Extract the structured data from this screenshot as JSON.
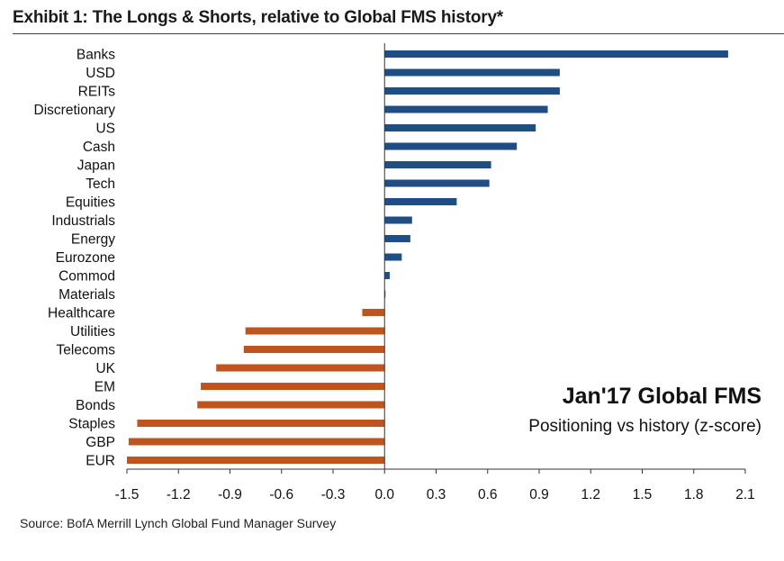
{
  "header": {
    "title": "Exhibit 1: The Longs & Shorts, relative to Global FMS history*"
  },
  "footer": {
    "source": "Source: BofA Merrill Lynch Global Fund Manager Survey"
  },
  "colors": {
    "positive": "#1f4e85",
    "negative": "#c0541f",
    "title_rule": "#1f4f82"
  },
  "chart_data": {
    "type": "bar",
    "orientation": "horizontal",
    "title": "Exhibit 1: The Longs & Shorts, relative to Global FMS history*",
    "annotation_title": "Jan'17 Global FMS",
    "annotation_subtitle": "Positioning vs history (z-score)",
    "xlabel": "",
    "ylabel": "",
    "xlim": [
      -1.5,
      2.1
    ],
    "x_ticks": [
      "-1.5",
      "-1.2",
      "-0.9",
      "-0.6",
      "-0.3",
      "0.0",
      "0.3",
      "0.6",
      "0.9",
      "1.2",
      "1.5",
      "1.8",
      "2.1"
    ],
    "grid": false,
    "categories": [
      "Banks",
      "USD",
      "REITs",
      "Discretionary",
      "US",
      "Cash",
      "Japan",
      "Tech",
      "Equities",
      "Industrials",
      "Energy",
      "Eurozone",
      "Commod",
      "Materials",
      "Healthcare",
      "Utilities",
      "Telecoms",
      "UK",
      "EM",
      "Bonds",
      "Staples",
      "GBP",
      "EUR"
    ],
    "values": [
      2.0,
      1.02,
      1.02,
      0.95,
      0.88,
      0.77,
      0.62,
      0.61,
      0.42,
      0.16,
      0.15,
      0.1,
      0.03,
      0.005,
      -0.13,
      -0.81,
      -0.82,
      -0.98,
      -1.07,
      -1.09,
      -1.44,
      -1.49,
      -1.5
    ]
  }
}
